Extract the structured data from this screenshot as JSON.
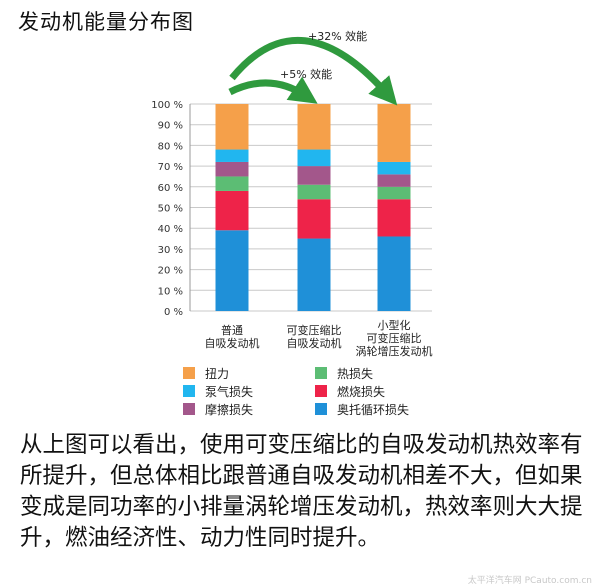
{
  "heading": "发动机能量分布图",
  "annotations": {
    "arrow_long": "+32% 效能",
    "arrow_short": "+5% 效能"
  },
  "paragraph": "从上图可以看出，使用可变压缩比的自吸发动机热效率有所提升，但总体相比跟普通自吸发动机相差不大，但如果变成是同功率的小排量涡轮增压发动机，热效率则大大提升，燃油经济性、动力性同时提升。",
  "watermark": "太平洋汽车网 PCauto.com.cn",
  "colors": {
    "torque": "#f5a04a",
    "pump": "#21b6ef",
    "friction": "#a3578b",
    "heat": "#5cbd74",
    "combustion": "#ee2349",
    "otto": "#1f90d8",
    "arrow": "#2f9a3e"
  },
  "chart_data": {
    "type": "bar",
    "stacked": true,
    "categories": [
      [
        "普通",
        "自吸发动机"
      ],
      [
        "可变压缩比",
        "自吸发动机"
      ],
      [
        "小型化",
        "可变压缩比",
        "涡轮增压发动机"
      ]
    ],
    "ylim": [
      0,
      100
    ],
    "yticks": [
      "0 %",
      "10 %",
      "20 %",
      "30 %",
      "40 %",
      "50 %",
      "60 %",
      "70 %",
      "80 %",
      "90 %",
      "100 %"
    ],
    "grid": true,
    "legend_position": "bottom",
    "series": [
      {
        "key": "otto",
        "name": "奥托循环损失",
        "values": [
          39,
          35,
          36
        ]
      },
      {
        "key": "combustion",
        "name": "燃烧损失",
        "values": [
          19,
          19,
          18
        ]
      },
      {
        "key": "heat",
        "name": "热损失",
        "values": [
          7,
          7,
          6
        ]
      },
      {
        "key": "friction",
        "name": "摩擦损失",
        "values": [
          7,
          9,
          6
        ]
      },
      {
        "key": "pump",
        "name": "泵气损失",
        "values": [
          6,
          8,
          6
        ]
      },
      {
        "key": "torque",
        "name": "扭力",
        "values": [
          22,
          22,
          28
        ]
      }
    ],
    "legend_order": [
      "torque",
      "heat",
      "pump",
      "combustion",
      "friction",
      "otto"
    ]
  }
}
